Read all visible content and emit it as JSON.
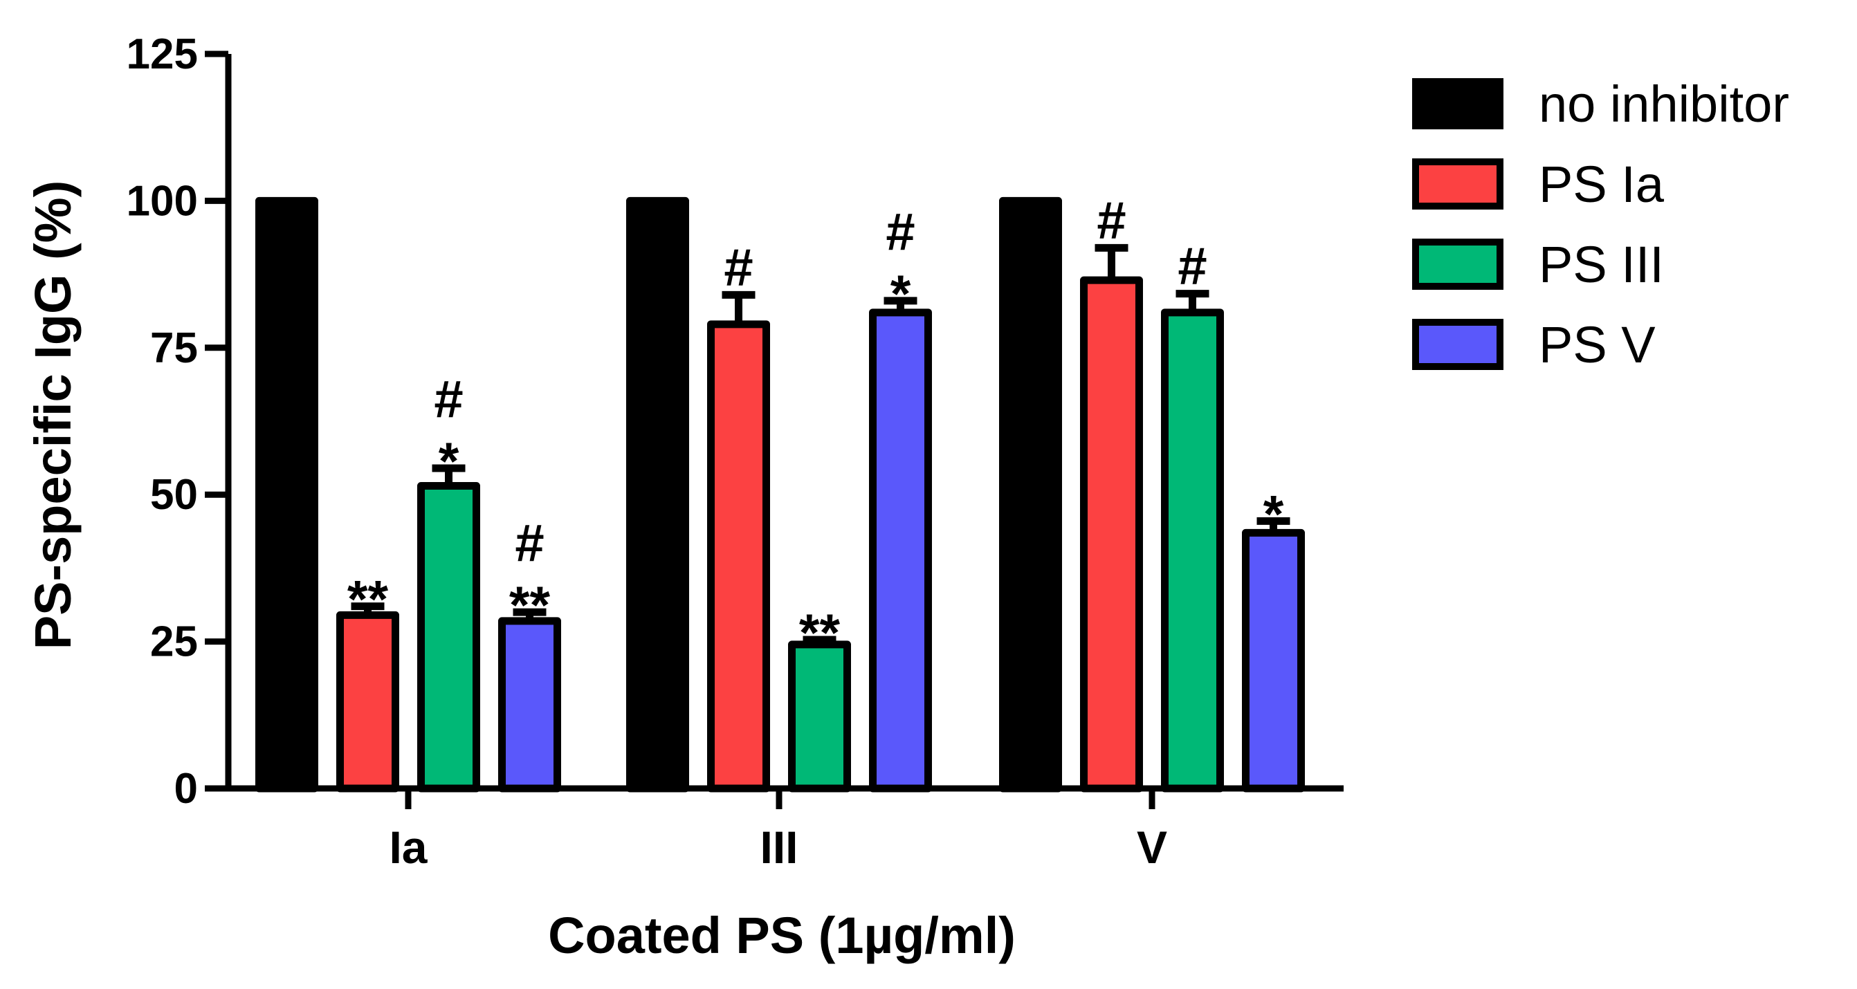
{
  "chart_data": {
    "type": "bar",
    "title": "",
    "xlabel": "Coated PS (1µg/ml)",
    "ylabel": "PS-specific IgG (%)",
    "ylim": [
      0,
      125
    ],
    "yticks": [
      0,
      25,
      50,
      75,
      100,
      125
    ],
    "ytick_labels": [
      "0",
      "25",
      "50",
      "75",
      "100",
      "125"
    ],
    "categories": [
      "Ia",
      "III",
      "V"
    ],
    "legend_position": "right",
    "grid": false,
    "series": [
      {
        "name": "no inhibitor",
        "color": "#000000",
        "values": [
          100,
          100,
          100
        ],
        "errors": [
          0,
          0,
          0
        ],
        "annotations": [
          [],
          [],
          []
        ]
      },
      {
        "name": "PS Ia",
        "color": "#fc4142",
        "values": [
          29.5,
          79,
          86.5
        ],
        "errors": [
          1.5,
          5,
          5.5
        ],
        "annotations": [
          [
            "**"
          ],
          [
            "#"
          ],
          [
            "#"
          ]
        ]
      },
      {
        "name": "PS III",
        "color": "#00b876",
        "values": [
          51.5,
          24.5,
          81
        ],
        "errors": [
          3,
          0.8,
          3.2
        ],
        "annotations": [
          [
            "*",
            "#"
          ],
          [
            "**"
          ],
          [
            "#"
          ]
        ]
      },
      {
        "name": "PS V",
        "color": "#5a58fb",
        "values": [
          28.5,
          81,
          43.5
        ],
        "errors": [
          1.5,
          2,
          2
        ],
        "annotations": [
          [
            "**",
            "#"
          ],
          [
            "*",
            "#"
          ],
          [
            "*"
          ]
        ]
      }
    ]
  }
}
